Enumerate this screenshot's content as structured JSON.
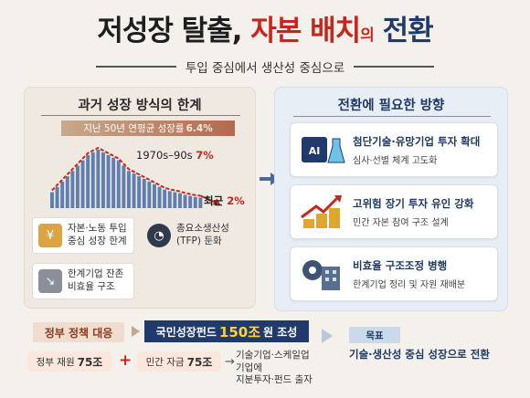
{
  "header": {
    "title_part1": "저성장 탈출,",
    "title_part2": "자본 배치",
    "title_part3": "의",
    "title_part4": "전환",
    "subtitle": "투입 중심에서 생산성 중심으로"
  },
  "left_panel": {
    "title": "과거 성장 방식의 한계",
    "growth_banner_text": "지난 50년 연평균 성장률",
    "growth_banner_value": "6.4%",
    "period_label": "1970s–90s",
    "period_value": "7%",
    "recent_label": "최근",
    "recent_value": "2%",
    "cards": [
      {
        "icon": "coins-worker-icon",
        "line1": "자본·노동 투입",
        "line2": "중심 성장 한계"
      },
      {
        "icon": "gauge-icon",
        "line1": "총요소생산성",
        "line2": "(TFP) 둔화"
      },
      {
        "icon": "declining-building-icon",
        "line1": "한계기업 잔존",
        "line2": "비효율 구조"
      }
    ]
  },
  "chart_data": {
    "type": "bar",
    "values": [
      3,
      4,
      5,
      6,
      7,
      8,
      9,
      10,
      10.5,
      11,
      10.5,
      10,
      9.5,
      9,
      8,
      7,
      6.5,
      6,
      5.5,
      5,
      4.5,
      4,
      3.5,
      3.2,
      3,
      2.8,
      2.5,
      2.3,
      2.1,
      2
    ],
    "trend": "declining",
    "colors": {
      "bar": "#5f7fb0",
      "trend_line": "#c8261d"
    }
  },
  "right_panel": {
    "title": "전환에 필요한 방향",
    "cards": [
      {
        "icon": "ai-chip-icon",
        "heading": "첨단기술·유망기업 투자 확대",
        "sub": "심사·선별 체계 고도화"
      },
      {
        "icon": "growth-arrow-coins-icon",
        "heading": "고위험 장기 투자 유인 강화",
        "sub": "민간 자본 참여 구조 설계"
      },
      {
        "icon": "gear-building-icon",
        "heading": "비효율 구조조정 병행",
        "sub": "한계기업 정리 및 자원 재배분"
      }
    ]
  },
  "policy": {
    "label": "정부 정책 대응",
    "fund_prefix": "국민성장펀드",
    "fund_amount": "150조",
    "fund_suffix": "원 조성",
    "gov_label": "정부 재원",
    "gov_amount": "75조",
    "private_label": "민간 자금",
    "private_amount": "75조",
    "detail_line1": "기술기업·스케일업 기업에",
    "detail_line2": "지분투자·펀드 출자"
  },
  "goal": {
    "label": "목표",
    "text": "기술·생산성 중심 성장으로 전환"
  }
}
